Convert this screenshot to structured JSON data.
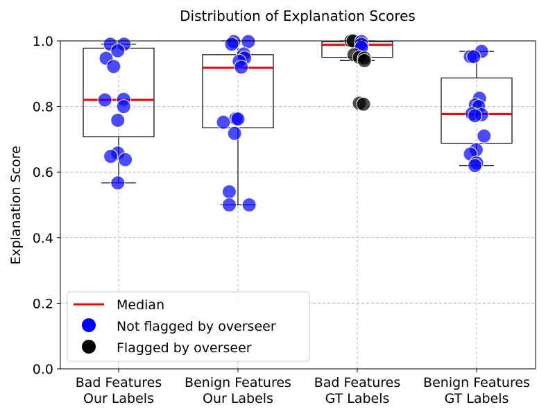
{
  "chart_data": {
    "type": "boxplot-strip",
    "title": "Distribution of Explanation Scores",
    "ylabel": "Explanation Score",
    "xlabel": "",
    "ylim": [
      0.0,
      1.0
    ],
    "yticks": [
      0.0,
      0.2,
      0.4,
      0.6,
      0.8,
      1.0
    ],
    "ytick_labels": [
      "0.0",
      "0.2",
      "0.4",
      "0.6",
      "0.8",
      "1.0"
    ],
    "grid": true,
    "legend_position": "lower-left",
    "legend": [
      {
        "label": "Median",
        "kind": "line",
        "color": "#ff0000"
      },
      {
        "label": "Not flagged by overseer",
        "kind": "marker",
        "color": "#0000ff"
      },
      {
        "label": "Flagged by overseer",
        "kind": "marker",
        "color": "#000000"
      }
    ],
    "colors": {
      "not_flagged": "#0000ff",
      "flagged": "#000000",
      "median": "#ff0000",
      "box": "#000000",
      "grid": "#bbbbbb"
    },
    "categories": [
      {
        "line1": "Bad Features",
        "line2": "Our Labels",
        "box": {
          "q1": 0.708,
          "median": 0.82,
          "q3": 0.978,
          "whisker_low": 0.567,
          "whisker_high": 0.99
        },
        "points": [
          {
            "y": 0.99,
            "jitter": -0.2,
            "flagged": false
          },
          {
            "y": 0.99,
            "jitter": 0.13,
            "flagged": false
          },
          {
            "y": 0.97,
            "jitter": -0.02,
            "flagged": false
          },
          {
            "y": 0.947,
            "jitter": -0.3,
            "flagged": false
          },
          {
            "y": 0.922,
            "jitter": -0.12,
            "flagged": false
          },
          {
            "y": 0.822,
            "jitter": 0.12,
            "flagged": false
          },
          {
            "y": 0.82,
            "jitter": -0.33,
            "flagged": false
          },
          {
            "y": 0.8,
            "jitter": 0.12,
            "flagged": false
          },
          {
            "y": 0.758,
            "jitter": -0.02,
            "flagged": false
          },
          {
            "y": 0.658,
            "jitter": -0.02,
            "flagged": false
          },
          {
            "y": 0.648,
            "jitter": -0.19,
            "flagged": false
          },
          {
            "y": 0.638,
            "jitter": 0.16,
            "flagged": false
          },
          {
            "y": 0.567,
            "jitter": -0.02,
            "flagged": false
          }
        ]
      },
      {
        "line1": "Benign Features",
        "line2": "Our Labels",
        "box": {
          "q1": 0.735,
          "median": 0.918,
          "q3": 0.958,
          "whisker_low": 0.5,
          "whisker_high": 1.0
        },
        "points": [
          {
            "y": 0.998,
            "jitter": -0.1,
            "flagged": false
          },
          {
            "y": 0.998,
            "jitter": 0.25,
            "flagged": false
          },
          {
            "y": 0.99,
            "jitter": -0.15,
            "flagged": false
          },
          {
            "y": 0.96,
            "jitter": 0.14,
            "flagged": false
          },
          {
            "y": 0.948,
            "jitter": 0.16,
            "flagged": false
          },
          {
            "y": 0.938,
            "jitter": 0.03,
            "flagged": false
          },
          {
            "y": 0.92,
            "jitter": 0.08,
            "flagged": false
          },
          {
            "y": 0.763,
            "jitter": -0.05,
            "flagged": false
          },
          {
            "y": 0.762,
            "jitter": 0.0,
            "flagged": false
          },
          {
            "y": 0.752,
            "jitter": -0.35,
            "flagged": false
          },
          {
            "y": 0.718,
            "jitter": -0.08,
            "flagged": false
          },
          {
            "y": 0.54,
            "jitter": -0.21,
            "flagged": false
          },
          {
            "y": 0.5,
            "jitter": -0.21,
            "flagged": false
          },
          {
            "y": 0.5,
            "jitter": 0.27,
            "flagged": false
          }
        ]
      },
      {
        "line1": "Bad Features",
        "line2": "GT Labels",
        "box": {
          "q1": 0.95,
          "median": 0.988,
          "q3": 0.998,
          "whisker_low": 0.94,
          "whisker_high": 1.0
        },
        "points": [
          {
            "y": 1.0,
            "jitter": -0.15,
            "flagged": true
          },
          {
            "y": 1.0,
            "jitter": -0.1,
            "flagged": true
          },
          {
            "y": 0.998,
            "jitter": 0.1,
            "flagged": false
          },
          {
            "y": 0.99,
            "jitter": 0.1,
            "flagged": false
          },
          {
            "y": 0.98,
            "jitter": 0.1,
            "flagged": false
          },
          {
            "y": 0.958,
            "jitter": -0.08,
            "flagged": true
          },
          {
            "y": 0.95,
            "jitter": 0.05,
            "flagged": true
          },
          {
            "y": 0.948,
            "jitter": 0.17,
            "flagged": true
          },
          {
            "y": 0.94,
            "jitter": 0.17,
            "flagged": true
          },
          {
            "y": 0.81,
            "jitter": 0.05,
            "flagged": true
          },
          {
            "y": 0.807,
            "jitter": 0.15,
            "flagged": true
          }
        ]
      },
      {
        "line1": "Benign Features",
        "line2": "GT Labels",
        "box": {
          "q1": 0.688,
          "median": 0.777,
          "q3": 0.887,
          "whisker_low": 0.62,
          "whisker_high": 0.968
        },
        "points": [
          {
            "y": 0.968,
            "jitter": 0.12,
            "flagged": false
          },
          {
            "y": 0.952,
            "jitter": -0.15,
            "flagged": false
          },
          {
            "y": 0.952,
            "jitter": -0.07,
            "flagged": false
          },
          {
            "y": 0.825,
            "jitter": 0.07,
            "flagged": false
          },
          {
            "y": 0.805,
            "jitter": -0.03,
            "flagged": false
          },
          {
            "y": 0.8,
            "jitter": 0.05,
            "flagged": false
          },
          {
            "y": 0.778,
            "jitter": -0.11,
            "flagged": false
          },
          {
            "y": 0.775,
            "jitter": 0.12,
            "flagged": false
          },
          {
            "y": 0.772,
            "jitter": -0.04,
            "flagged": false
          },
          {
            "y": 0.71,
            "jitter": 0.18,
            "flagged": false
          },
          {
            "y": 0.668,
            "jitter": -0.01,
            "flagged": false
          },
          {
            "y": 0.655,
            "jitter": -0.15,
            "flagged": false
          },
          {
            "y": 0.628,
            "jitter": 0.0,
            "flagged": false
          },
          {
            "y": 0.62,
            "jitter": -0.04,
            "flagged": false
          }
        ]
      }
    ]
  }
}
